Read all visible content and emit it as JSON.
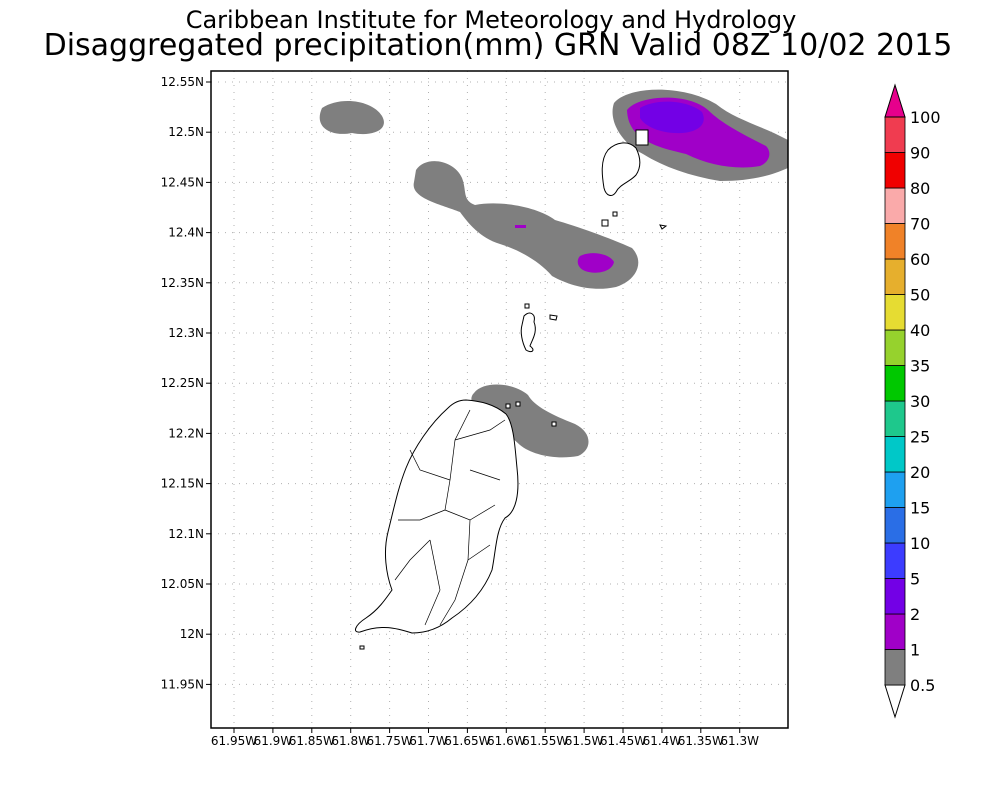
{
  "title": {
    "line1": "Caribbean Institute for Meteorology and Hydrology",
    "line2": "Disaggregated precipitation(mm) GRN Valid 08Z 10/02 2015"
  },
  "map": {
    "lat_ticks": [
      "12.55N",
      "12.5N",
      "12.45N",
      "12.4N",
      "12.35N",
      "12.3N",
      "12.25N",
      "12.2N",
      "12.15N",
      "12.1N",
      "12.05N",
      "12N",
      "11.95N"
    ],
    "lon_ticks": [
      "61.95W",
      "61.9W",
      "61.85W",
      "61.8W",
      "61.75W",
      "61.7W",
      "61.65W",
      "61.6W",
      "61.55W",
      "61.5W",
      "61.45W",
      "61.4W",
      "61.35W",
      "61.3W"
    ],
    "colors": {
      "gray": "#7f7f7f",
      "purple": "#a000c8",
      "violet": "#7300e6"
    }
  },
  "colorbar": {
    "labels": [
      "0.5",
      "1",
      "2",
      "5",
      "10",
      "15",
      "20",
      "25",
      "30",
      "35",
      "40",
      "50",
      "60",
      "70",
      "80",
      "90",
      "100"
    ],
    "colors": [
      "#7f7f7f",
      "#a000c8",
      "#7300e6",
      "#3c3cff",
      "#2a6ee6",
      "#1ea0f0",
      "#00c8c8",
      "#1ec88c",
      "#00c800",
      "#96d22d",
      "#e6dc32",
      "#e6af2d",
      "#f08228",
      "#faaaaa",
      "#f00000",
      "#f03c50",
      "#e6008c"
    ]
  }
}
